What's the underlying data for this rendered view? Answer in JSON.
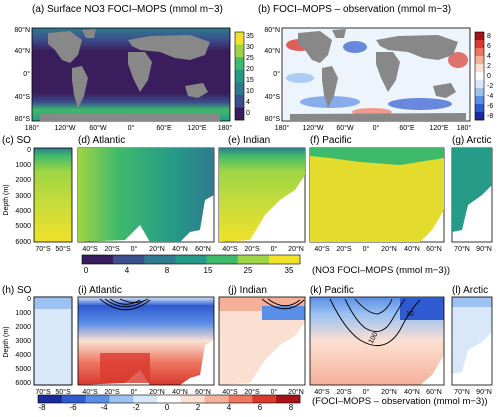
{
  "colors": {
    "land": "#888888",
    "ocean_dark": "#2c2a66",
    "nitrate_scale": [
      "#3a1d5c",
      "#3b4f8c",
      "#2f7a8f",
      "#259a86",
      "#3fba6b",
      "#9fd544",
      "#f0e12a"
    ],
    "anomaly_scale": [
      "#1a2c9c",
      "#2f5ad0",
      "#5b8ee6",
      "#9cc2f2",
      "#d8e8f8",
      "#ffffff",
      "#fbe0d2",
      "#f6b09a",
      "#ee7560",
      "#d93a2e",
      "#a8121a"
    ]
  },
  "chart_data": [
    {
      "type": "heatmap",
      "panel": "a",
      "title": "(a) Surface NO3 FOCI–MOPS (mmol m−3)",
      "x_ticks": [
        "180°",
        "120°W",
        "60°W",
        "0°",
        "60°E",
        "120°E",
        "180°"
      ],
      "y_ticks": [
        "80°N",
        "40°N",
        "0°",
        "40°S",
        "80°S"
      ],
      "colorbar_ticks": [
        "35",
        "30",
        "25",
        "20",
        "15",
        "10",
        "4",
        "0"
      ]
    },
    {
      "type": "heatmap",
      "panel": "b",
      "title": "(b) FOCI–MOPS – observation (mmol m−3)",
      "x_ticks": [
        "180°",
        "120°W",
        "60°W",
        "0°",
        "60°E",
        "120°E",
        "180°"
      ],
      "y_ticks": [
        "80°N",
        "40°N",
        "0°",
        "40°S",
        "80°S"
      ],
      "colorbar_ticks": [
        "8",
        "6",
        "4",
        "2",
        "0",
        "-2",
        "-4",
        "-6",
        "-8"
      ]
    },
    {
      "type": "heatmap",
      "panels": [
        "c",
        "d",
        "e",
        "f",
        "g"
      ],
      "titles": [
        "(c) SO",
        "(d) Atlantic",
        "(e) Indian",
        "(f) Pacific",
        "(g) Arctic"
      ],
      "ylabel": "Depth (m)",
      "y_ticks": [
        "0",
        "1000",
        "2000",
        "3000",
        "4000",
        "5000",
        "6000"
      ],
      "x_ticks": {
        "c": [
          "70°S",
          "50°S"
        ],
        "d": [
          "40°S",
          "20°S",
          "0°",
          "20°N",
          "40°N",
          "60°N"
        ],
        "e": [
          "40°S",
          "20°S",
          "0°",
          "20°N"
        ],
        "f": [
          "40°S",
          "20°S",
          "0°",
          "20°N",
          "40°N",
          "60°N"
        ],
        "g": [
          "70°N",
          "90°N"
        ]
      },
      "colorbar_ticks": [
        "0",
        "4",
        "8",
        "15",
        "25",
        "35"
      ],
      "colorbar_label": "(NO3 FOCI–MOPS (mmol m−3))"
    },
    {
      "type": "heatmap",
      "panels": [
        "h",
        "i",
        "j",
        "k",
        "l"
      ],
      "titles": [
        "(h) SO",
        "(i) Atlantic",
        "(j) Indian",
        "(k) Pacific",
        "(l) Arctic"
      ],
      "ylabel": "Depth (m)",
      "y_ticks": [
        "0",
        "1000",
        "2000",
        "3000",
        "4000",
        "5000",
        "6000"
      ],
      "x_ticks": {
        "h": [
          "70°S",
          "50°S"
        ],
        "i": [
          "40°S",
          "20°S",
          "0°",
          "20°N",
          "40°N",
          "60°N"
        ],
        "j": [
          "40°S",
          "20°S",
          "0°",
          "20°N"
        ],
        "k": [
          "40°S",
          "20°S",
          "0°",
          "20°N",
          "40°N",
          "60°N"
        ],
        "l": [
          "70°N",
          "90°N"
        ]
      },
      "contour_labels": [
        "10",
        "100"
      ],
      "colorbar_ticks": [
        "-8",
        "-6",
        "-4",
        "-2",
        "0",
        "2",
        "4",
        "6",
        "8"
      ],
      "colorbar_label": "(FOCI–MOPS – observation (mmol m−3))"
    }
  ]
}
